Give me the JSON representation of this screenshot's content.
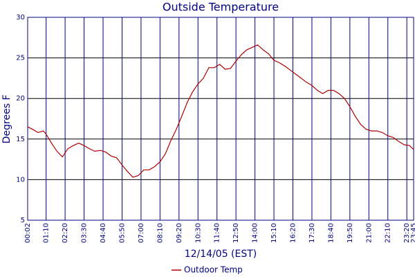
{
  "chart_data": {
    "type": "line",
    "title": "Outside Temperature",
    "x_label": "12/14/05 (EST)",
    "y_label": "Degrees F",
    "x": [
      2,
      20,
      40,
      60,
      70,
      90,
      110,
      130,
      150,
      170,
      190,
      210,
      230,
      250,
      270,
      290,
      310,
      330,
      350,
      370,
      390,
      410,
      430,
      450,
      470,
      490,
      510,
      530,
      550,
      570,
      590,
      610,
      630,
      650,
      670,
      690,
      710,
      730,
      750,
      770,
      790,
      810,
      830,
      850,
      870,
      890,
      910,
      930,
      950,
      970,
      990,
      1010,
      1030,
      1050,
      1070,
      1090,
      1110,
      1130,
      1150,
      1170,
      1190,
      1210,
      1230,
      1250,
      1270,
      1290,
      1310,
      1330,
      1350,
      1370,
      1390,
      1410,
      1425
    ],
    "series": [
      {
        "name": "Outdoor Temp",
        "color": "#b00000",
        "values": [
          16.5,
          16.2,
          15.8,
          16.0,
          15.6,
          14.5,
          13.5,
          12.8,
          13.8,
          14.2,
          14.5,
          14.2,
          13.8,
          13.5,
          13.6,
          13.4,
          12.9,
          12.7,
          11.8,
          11.0,
          10.3,
          10.5,
          11.2,
          11.2,
          11.6,
          12.2,
          13.2,
          14.8,
          16.2,
          17.8,
          19.5,
          20.8,
          21.8,
          22.5,
          23.8,
          23.8,
          24.2,
          23.6,
          23.7,
          24.6,
          25.4,
          26.0,
          26.3,
          26.6,
          26.0,
          25.5,
          24.7,
          24.4,
          24.0,
          23.5,
          23.0,
          22.5,
          22.0,
          21.6,
          21.0,
          20.6,
          21.0,
          21.0,
          20.6,
          20.0,
          19.0,
          17.8,
          16.8,
          16.2,
          16.0,
          16.0,
          15.8,
          15.4,
          15.2,
          14.7,
          14.3,
          14.2,
          13.7
        ]
      }
    ],
    "xlim": [
      2,
      1425
    ],
    "xticks": [
      {
        "value": 2,
        "label": "00:02"
      },
      {
        "value": 70,
        "label": "01:10"
      },
      {
        "value": 140,
        "label": "02:20"
      },
      {
        "value": 210,
        "label": "03:30"
      },
      {
        "value": 280,
        "label": "04:40"
      },
      {
        "value": 350,
        "label": "05:50"
      },
      {
        "value": 420,
        "label": "07:00"
      },
      {
        "value": 490,
        "label": "08:10"
      },
      {
        "value": 560,
        "label": "09:20"
      },
      {
        "value": 630,
        "label": "10:30"
      },
      {
        "value": 700,
        "label": "11:40"
      },
      {
        "value": 770,
        "label": "12:50"
      },
      {
        "value": 840,
        "label": "14:00"
      },
      {
        "value": 910,
        "label": "15:10"
      },
      {
        "value": 980,
        "label": "16:20"
      },
      {
        "value": 1050,
        "label": "17:30"
      },
      {
        "value": 1120,
        "label": "18:40"
      },
      {
        "value": 1190,
        "label": "19:50"
      },
      {
        "value": 1260,
        "label": "21:00"
      },
      {
        "value": 1330,
        "label": "22:10"
      },
      {
        "value": 1400,
        "label": "23:20"
      },
      {
        "value": 1425,
        "label": "23:45"
      }
    ],
    "ylim": [
      5,
      30
    ],
    "yticks": [
      5,
      10,
      15,
      20,
      25,
      30
    ],
    "grid": true
  }
}
